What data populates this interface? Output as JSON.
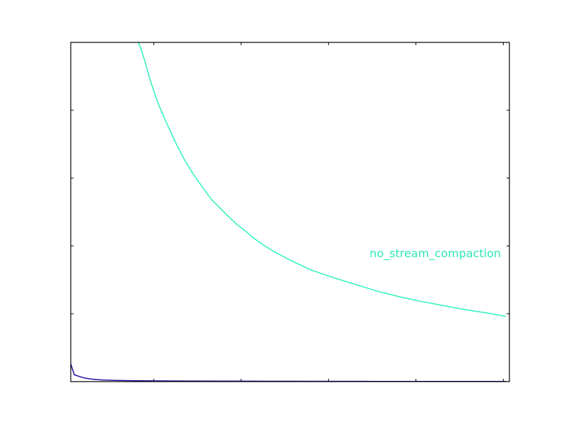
{
  "chart_data": {
    "type": "line",
    "title": "",
    "xlabel": "",
    "ylabel": "",
    "xlim": [
      0,
      100
    ],
    "ylim": [
      0,
      100
    ],
    "grid": false,
    "legend": "none",
    "series": [
      {
        "name": "no_stream_compaction",
        "color": "#2ef2bf",
        "x": [
          15.4,
          16,
          17,
          18,
          19,
          20,
          22,
          24,
          26,
          28,
          30,
          32,
          34,
          36,
          38,
          40,
          42,
          44,
          46,
          48,
          50,
          55,
          60,
          65,
          70,
          75,
          80,
          85,
          90,
          95,
          99.2
        ],
        "y": [
          100,
          98.2,
          94.0,
          89.4,
          85.4,
          81.8,
          75.8,
          70.2,
          65.2,
          61.0,
          57.4,
          53.8,
          51.2,
          48.6,
          46.2,
          44.2,
          42.0,
          40.2,
          38.6,
          37.2,
          35.8,
          32.8,
          30.6,
          28.6,
          26.6,
          25.0,
          23.6,
          22.4,
          21.2,
          20.2,
          19.2
        ]
      },
      {
        "name": "",
        "color": "#2a0f9e",
        "x": [
          0,
          0.8,
          2,
          3,
          4,
          5,
          7,
          10,
          15,
          20,
          30,
          40,
          50,
          60,
          70,
          80,
          90,
          99.2
        ],
        "y": [
          5.2,
          2.0,
          1.5,
          1.1,
          0.9,
          0.7,
          0.5,
          0.35,
          0.25,
          0.2,
          0.15,
          0.12,
          0.1,
          0.08,
          0.07,
          0.06,
          0.05,
          0.05
        ]
      }
    ],
    "annotations": [
      {
        "text": "no_stream_compaction",
        "color": "#2ee8b8",
        "anchor": "right"
      }
    ]
  }
}
